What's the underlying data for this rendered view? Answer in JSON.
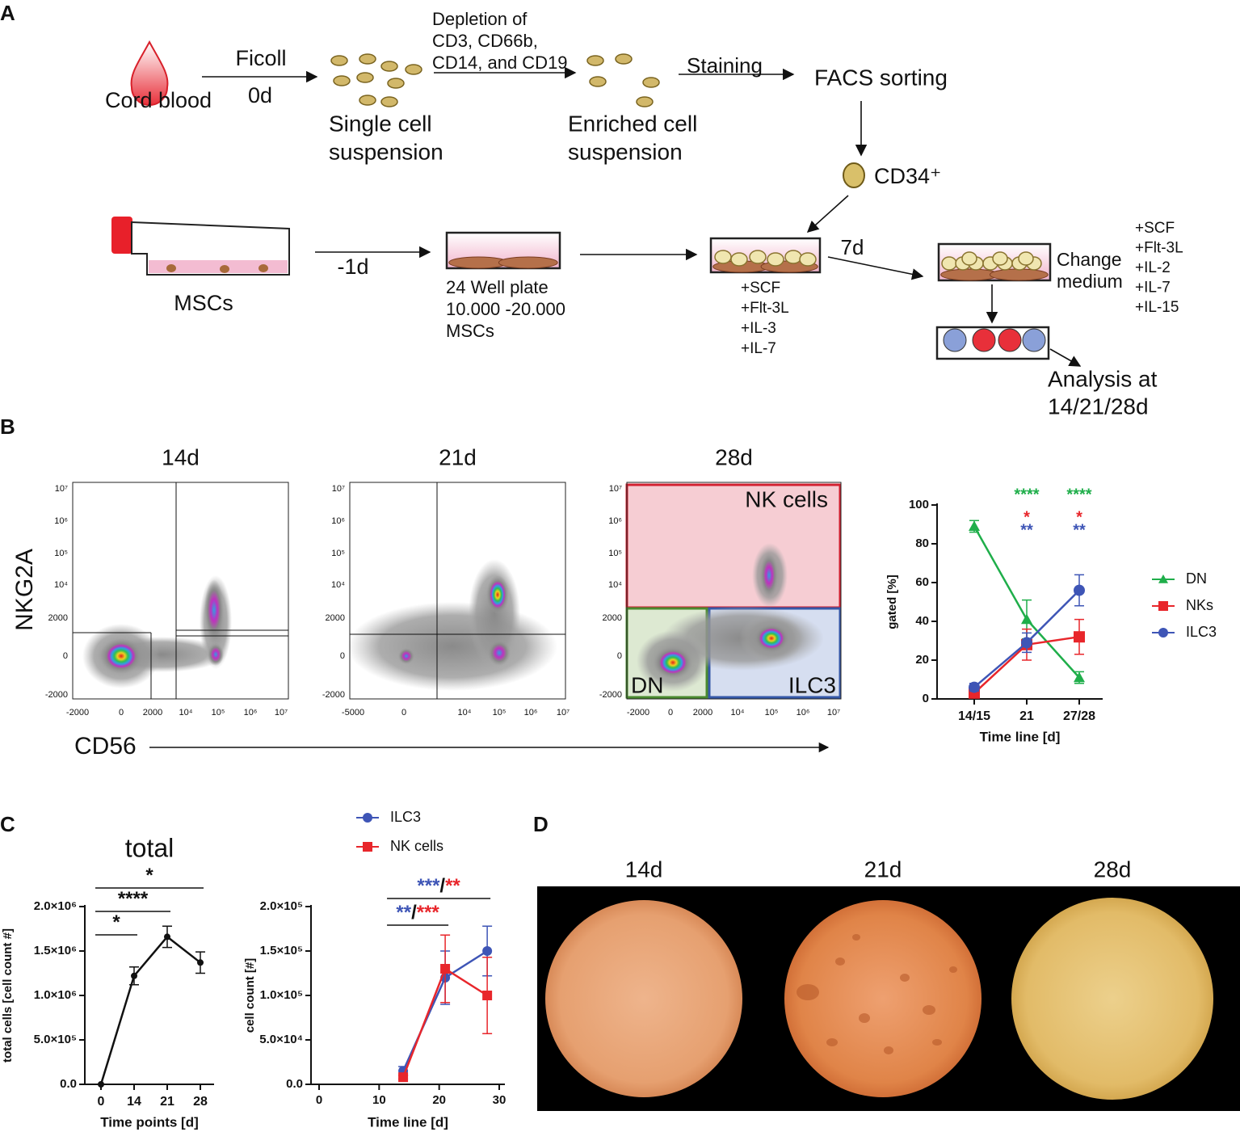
{
  "diagram": {
    "label": "A",
    "source": "Cord blood",
    "ficoll": "Ficoll",
    "day0": "0d",
    "single_cell": [
      "Single cell",
      "suspension"
    ],
    "depletion": [
      "Depletion of",
      "CD3, CD66b,",
      "CD14, and CD19"
    ],
    "enriched": [
      "Enriched cell",
      "suspension"
    ],
    "staining": "Staining",
    "facs": "FACS sorting",
    "cd34": "CD34⁺",
    "mscs": "MSCs",
    "day_minus1": "-1d",
    "plate": [
      "24 Well plate",
      "10.000 -20.000",
      "MSCs"
    ],
    "cytokines_1": [
      "+SCF",
      "+Flt-3L",
      "+IL-3",
      "+IL-7"
    ],
    "day7": "7d",
    "change": [
      "Change",
      "medium"
    ],
    "cytokines_2": [
      "+SCF",
      "+Flt-3L",
      "+IL-2",
      "+IL-7",
      "+IL-15"
    ],
    "analysis": [
      "Analysis at",
      "14/21/28d"
    ]
  },
  "flow_plots": {
    "label": "B",
    "y_axis": "NKG2A",
    "x_axis": "CD56",
    "plots": [
      {
        "title": "14d",
        "yticks": [
          "10⁷",
          "10⁶",
          "10⁵",
          "10⁴",
          "2000",
          "0",
          "-2000"
        ],
        "xticks": [
          "-2000",
          "0",
          "2000",
          "10⁴",
          "10⁵",
          "10⁶",
          "10⁷"
        ]
      },
      {
        "title": "21d",
        "yticks": [
          "10⁷",
          "10⁶",
          "10⁵",
          "10⁴",
          "2000",
          "0",
          "-2000"
        ],
        "xticks": [
          "-5000",
          "0",
          "10⁴",
          "10⁵",
          "10⁶",
          "10⁷"
        ]
      },
      {
        "title": "28d",
        "yticks": [
          "10⁷",
          "10⁶",
          "10⁵",
          "10⁴",
          "2000",
          "0",
          "-2000"
        ],
        "xticks": [
          "-2000",
          "0",
          "2000",
          "10⁴",
          "10⁵",
          "10⁶",
          "10⁷"
        ],
        "gates": [
          "NK cells",
          "DN",
          "ILC3"
        ]
      }
    ]
  },
  "chart_data": [
    {
      "type": "line",
      "categories": [
        "14/15",
        "21",
        "27/28"
      ],
      "series": [
        {
          "name": "DN",
          "color": "#1fae4a",
          "marker": "triangle",
          "values": [
            89,
            41,
            11
          ],
          "errors": [
            3,
            10,
            3
          ]
        },
        {
          "name": "NKs",
          "color": "#e8262b",
          "marker": "square",
          "values": [
            3,
            28,
            32
          ],
          "errors": [
            2,
            8,
            9
          ]
        },
        {
          "name": "ILC3",
          "color": "#3e55b6",
          "marker": "circle",
          "values": [
            6,
            29,
            56
          ],
          "errors": [
            2,
            5,
            8
          ]
        }
      ],
      "ylim": [
        0,
        100
      ],
      "yticks": [
        0,
        20,
        40,
        60,
        80,
        100
      ],
      "xlabel": "Time line [d]",
      "ylabel": "gated [%]",
      "legend": "right",
      "annotations": [
        {
          "x": "21",
          "text": "****",
          "color": "#1fae4a"
        },
        {
          "x": "21",
          "text": "*",
          "color": "#e8262b"
        },
        {
          "x": "21",
          "text": "**",
          "color": "#3e55b6"
        },
        {
          "x": "27/28",
          "text": "****",
          "color": "#1fae4a"
        },
        {
          "x": "27/28",
          "text": "*",
          "color": "#e8262b"
        },
        {
          "x": "27/28",
          "text": "**",
          "color": "#3e55b6"
        }
      ]
    },
    {
      "type": "line",
      "label": "C",
      "title": "total",
      "categories": [
        "0",
        "14",
        "21",
        "28"
      ],
      "values": [
        0,
        1220000,
        1660000,
        1370000
      ],
      "errors": [
        0,
        100000,
        120000,
        120000
      ],
      "color": "#111111",
      "ylim": [
        0,
        2000000
      ],
      "yticks": [
        {
          "value": 0,
          "label": "0.0"
        },
        {
          "value": 500000,
          "label": "5.0×10⁵"
        },
        {
          "value": 1000000,
          "label": "1.0×10⁶"
        },
        {
          "value": 1500000,
          "label": "1.5×10⁶"
        },
        {
          "value": 2000000,
          "label": "2.0×10⁶"
        }
      ],
      "xlabel": "Time points [d]",
      "ylabel": "total cells [cell count #]",
      "brackets": [
        {
          "from": "0",
          "to": "14",
          "parts": [
            {
              "text": "*"
            }
          ]
        },
        {
          "from": "0",
          "to": "21",
          "parts": [
            {
              "text": "****"
            }
          ]
        },
        {
          "from": "0",
          "to": "28",
          "parts": [
            {
              "text": "*"
            }
          ]
        }
      ]
    },
    {
      "type": "line",
      "x": [
        14,
        21,
        28
      ],
      "series": [
        {
          "name": "ILC3",
          "color": "#3e55b6",
          "marker": "circle",
          "values": [
            15000,
            120000,
            150000
          ],
          "errors": [
            5000,
            30000,
            28000
          ]
        },
        {
          "name": "NK cells",
          "color": "#e8262b",
          "marker": "square",
          "values": [
            8000,
            130000,
            100000
          ],
          "errors": [
            2000,
            38000,
            43000
          ]
        }
      ],
      "xlim": [
        0,
        30
      ],
      "xticks": [
        0,
        10,
        20,
        30
      ],
      "ylim": [
        0,
        200000
      ],
      "yticks": [
        {
          "value": 0,
          "label": "0.0"
        },
        {
          "value": 50000,
          "label": "5.0×10⁴"
        },
        {
          "value": 100000,
          "label": "1.0×10⁵"
        },
        {
          "value": 150000,
          "label": "1.5×10⁵"
        },
        {
          "value": 200000,
          "label": "2.0×10⁵"
        }
      ],
      "xlabel": "Time line [d]",
      "ylabel": "cell count [#]",
      "legend": "top",
      "brackets": [
        {
          "from": 14,
          "to": 21,
          "parts": [
            {
              "text": "**",
              "color": "#3e55b6"
            },
            {
              "text": "/"
            },
            {
              "text": "***",
              "color": "#e8262b"
            }
          ]
        },
        {
          "from": 14,
          "to": 28,
          "parts": [
            {
              "text": "***",
              "color": "#3e55b6"
            },
            {
              "text": "/"
            },
            {
              "text": "**",
              "color": "#e8262b"
            }
          ]
        }
      ]
    }
  ],
  "micrographs": {
    "label": "D",
    "titles": [
      "14d",
      "21d",
      "28d"
    ]
  }
}
